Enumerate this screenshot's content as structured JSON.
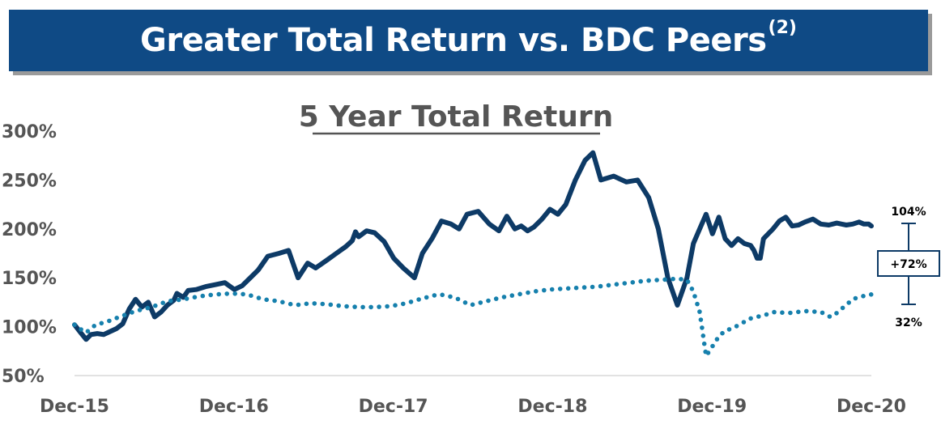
{
  "banner": {
    "title": "Greater Total Return vs. BDC Peers",
    "footnote": "(2)",
    "background": "#0f4a85"
  },
  "chart_data": {
    "type": "line",
    "title": "5 Year Total Return",
    "xlabel": "",
    "ylabel": "",
    "x_ticks": [
      "Dec-15",
      "Dec-16",
      "Dec-17",
      "Dec-18",
      "Dec-19",
      "Dec-20"
    ],
    "y_ticks": [
      "50%",
      "100%",
      "150%",
      "200%",
      "250%",
      "300%"
    ],
    "ylim": [
      50,
      300
    ],
    "x_range_years": [
      2015.917,
      2020.917
    ],
    "grid": false,
    "legend": "none",
    "series": [
      {
        "style": "solid",
        "color": "#0d3a66",
        "x": [
          2015.917,
          2015.95,
          2015.99,
          2016.02,
          2016.06,
          2016.1,
          2016.14,
          2016.18,
          2016.22,
          2016.26,
          2016.3,
          2016.34,
          2016.38,
          2016.42,
          2016.46,
          2016.5,
          2016.54,
          2016.56,
          2016.6,
          2016.63,
          2016.68,
          2016.74,
          2016.8,
          2016.86,
          2016.92,
          2016.97,
          2017.02,
          2017.07,
          2017.13,
          2017.2,
          2017.26,
          2017.32,
          2017.38,
          2017.43,
          2017.5,
          2017.56,
          2017.62,
          2017.66,
          2017.68,
          2017.7,
          2017.75,
          2017.8,
          2017.86,
          2017.92,
          2017.98,
          2018.05,
          2018.1,
          2018.16,
          2018.22,
          2018.28,
          2018.33,
          2018.38,
          2018.45,
          2018.52,
          2018.58,
          2018.63,
          2018.68,
          2018.72,
          2018.76,
          2018.8,
          2018.85,
          2018.9,
          2018.95,
          2019.0,
          2019.06,
          2019.12,
          2019.17,
          2019.22,
          2019.3,
          2019.38,
          2019.45,
          2019.52,
          2019.58,
          2019.64,
          2019.7,
          2019.76,
          2019.8,
          2019.84,
          2019.88,
          2019.92,
          2019.96,
          2020.0,
          2020.04,
          2020.08,
          2020.12,
          2020.16,
          2020.18,
          2020.2,
          2020.22,
          2020.24,
          2020.27,
          2020.3,
          2020.34,
          2020.38,
          2020.42,
          2020.46,
          2020.5,
          2020.55,
          2020.6,
          2020.65,
          2020.7,
          2020.73,
          2020.76,
          2020.8,
          2020.84,
          2020.87,
          2020.9,
          2020.917
        ],
        "values": [
          102,
          95,
          87,
          92,
          93,
          92,
          95,
          98,
          103,
          118,
          128,
          120,
          125,
          110,
          115,
          122,
          127,
          134,
          130,
          137,
          138,
          141,
          143,
          145,
          138,
          142,
          150,
          158,
          172,
          175,
          178,
          150,
          165,
          160,
          168,
          175,
          182,
          188,
          197,
          192,
          198,
          196,
          187,
          170,
          160,
          150,
          175,
          190,
          208,
          205,
          200,
          215,
          218,
          205,
          198,
          213,
          200,
          203,
          198,
          202,
          210,
          220,
          215,
          225,
          250,
          270,
          278,
          250,
          254,
          248,
          250,
          232,
          200,
          150,
          122,
          150,
          185,
          200,
          215,
          195,
          212,
          190,
          183,
          190,
          185,
          183,
          178,
          170,
          170,
          190,
          195,
          200,
          208,
          212,
          203,
          204,
          207,
          210,
          205,
          204,
          206,
          205,
          204,
          205,
          207,
          205,
          205,
          203
        ]
      },
      {
        "style": "dotted",
        "color": "#1680ad",
        "x": [
          2015.917,
          2015.95,
          2015.99,
          2016.05,
          2016.12,
          2016.2,
          2016.3,
          2016.4,
          2016.5,
          2016.6,
          2016.7,
          2016.8,
          2016.9,
          2017.0,
          2017.1,
          2017.2,
          2017.3,
          2017.4,
          2017.5,
          2017.6,
          2017.7,
          2017.8,
          2017.9,
          2018.0,
          2018.08,
          2018.15,
          2018.2,
          2018.25,
          2018.33,
          2018.4,
          2018.5,
          2018.6,
          2018.7,
          2018.8,
          2018.9,
          2019.0,
          2019.1,
          2019.2,
          2019.3,
          2019.4,
          2019.5,
          2019.6,
          2019.7,
          2019.76,
          2019.8,
          2019.84,
          2019.88,
          2019.92,
          2019.96,
          2020.0,
          2020.04,
          2020.1,
          2020.15,
          2020.2,
          2020.25,
          2020.3,
          2020.4,
          2020.5,
          2020.6,
          2020.66,
          2020.7,
          2020.75,
          2020.8,
          2020.85,
          2020.9,
          2020.917
        ],
        "values": [
          102,
          98,
          94,
          102,
          105,
          110,
          116,
          120,
          126,
          128,
          131,
          133,
          134,
          133,
          128,
          126,
          122,
          124,
          123,
          121,
          120,
          120,
          121,
          124,
          128,
          131,
          133,
          132,
          128,
          122,
          126,
          130,
          133,
          136,
          138,
          139,
          140,
          141,
          143,
          145,
          147,
          148,
          149,
          148,
          136,
          115,
          70,
          80,
          90,
          96,
          98,
          103,
          108,
          110,
          112,
          115,
          114,
          116,
          115,
          110,
          114,
          121,
          128,
          131,
          132,
          133
        ]
      }
    ],
    "annotation": {
      "top_label": "104%",
      "box_label": "+72%",
      "bottom_label": "32%"
    }
  }
}
